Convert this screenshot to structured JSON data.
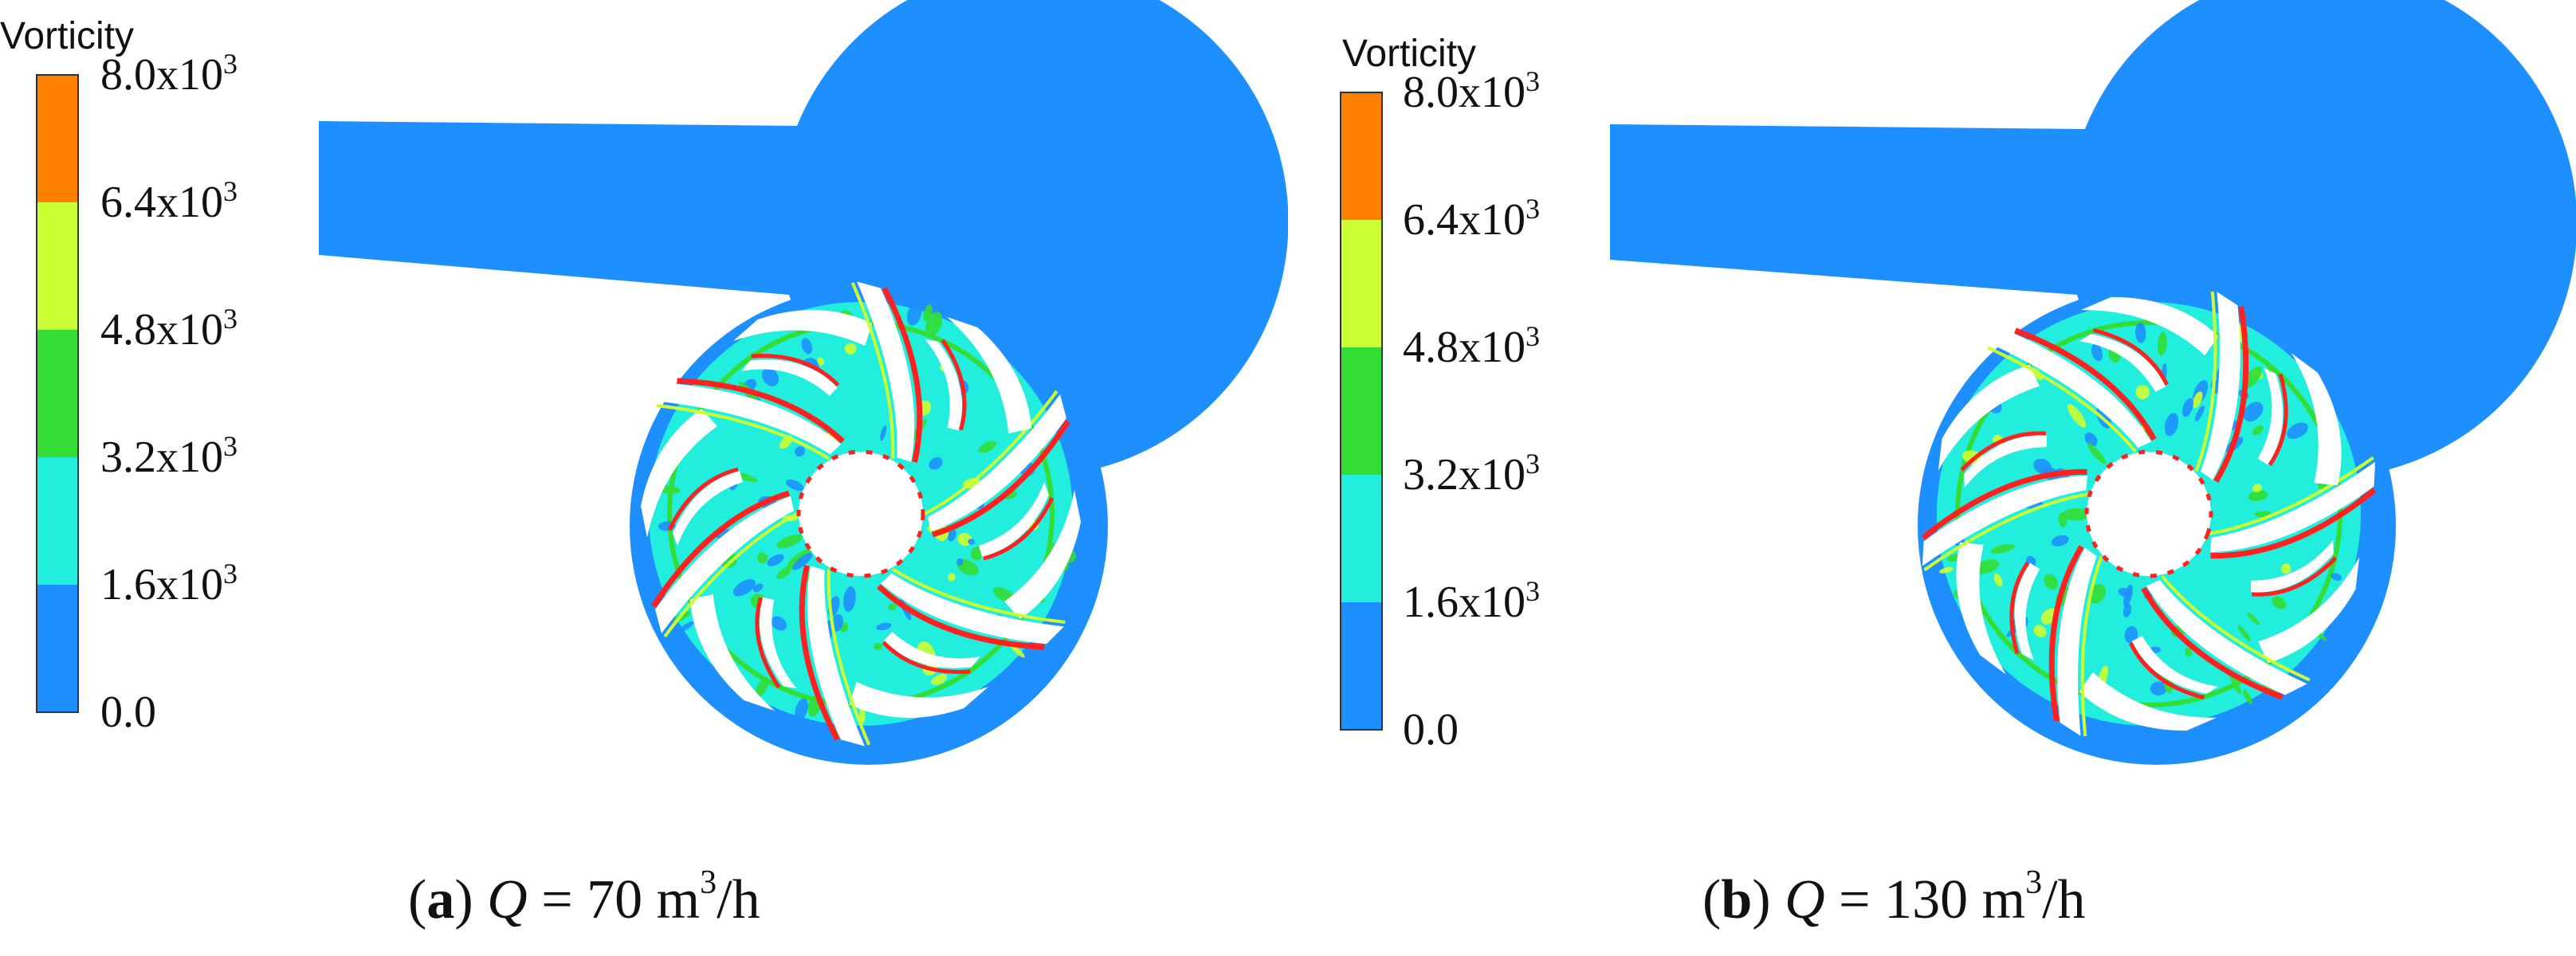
{
  "colorbar": {
    "title": "Vorticity",
    "ticks": [
      {
        "mantissa": "8.0x10",
        "exp": "3"
      },
      {
        "mantissa": "6.4x10",
        "exp": "3"
      },
      {
        "mantissa": "4.8x10",
        "exp": "3"
      },
      {
        "mantissa": "3.2x10",
        "exp": "3"
      },
      {
        "mantissa": "1.6x10",
        "exp": "3"
      },
      {
        "mantissa": "0.0",
        "exp": ""
      }
    ],
    "colors": [
      "#ff8000",
      "#ccff33",
      "#33dd33",
      "#22eedd",
      "#1e8fff"
    ]
  },
  "field_colors": {
    "base": "#1e8fff",
    "cyan": "#22eedd",
    "green": "#33dd33",
    "yellow": "#ccff33",
    "red": "#ff2020"
  },
  "panels": [
    {
      "id": "a",
      "label": "a",
      "q_symbol": "Q",
      "q_text": " = 70 m",
      "exp": "3",
      "unit": "/h",
      "blades": 6,
      "rotation": 0
    },
    {
      "id": "b",
      "label": "b",
      "q_symbol": "Q",
      "q_text": " = 130 m",
      "exp": "3",
      "unit": "/h",
      "blades": 6,
      "rotation": 18
    }
  ]
}
